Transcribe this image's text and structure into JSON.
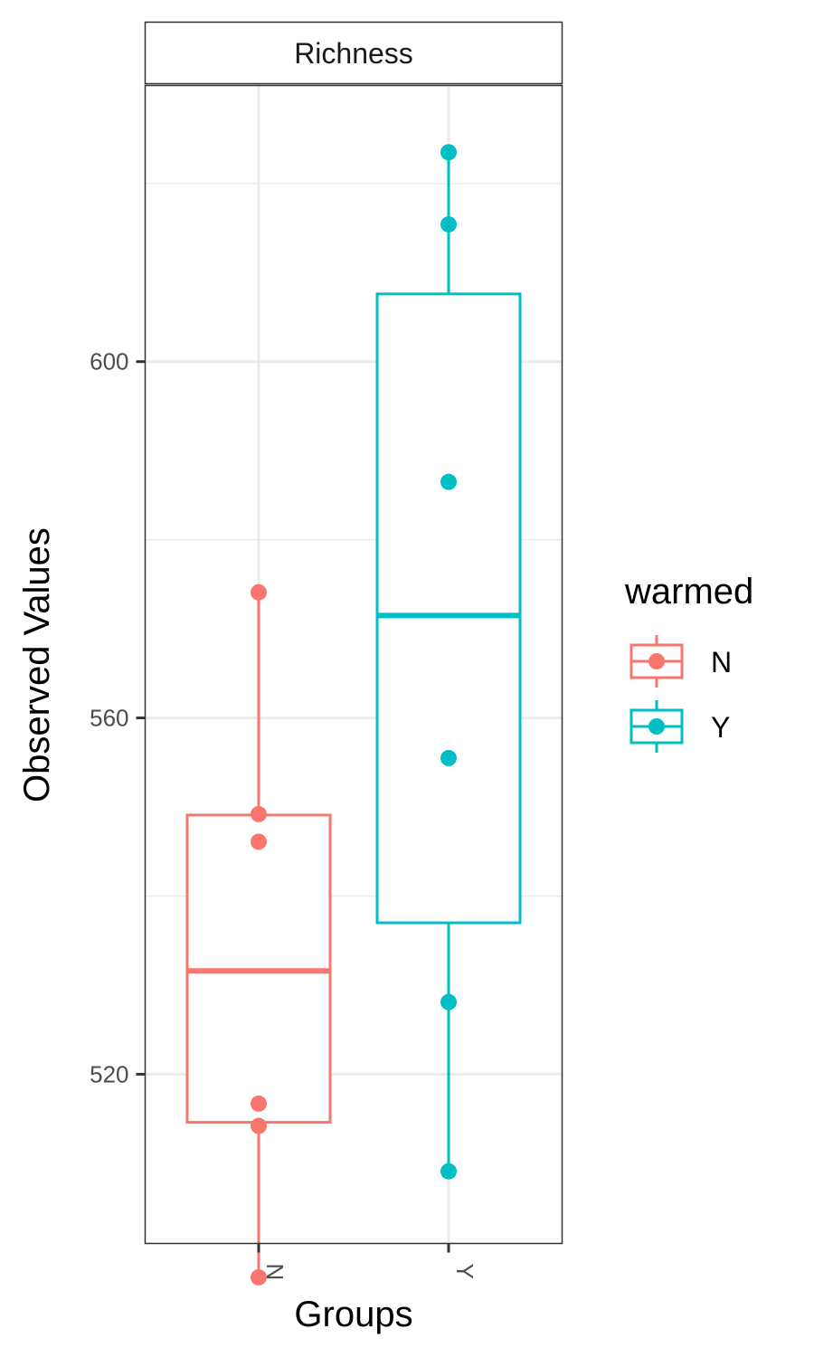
{
  "chart_data": {
    "type": "box",
    "facet_title": "Richness",
    "xlabel": "Groups",
    "ylabel": "Observed Values",
    "categories": [
      "N",
      "Y"
    ],
    "ylim": [
      501,
      631
    ],
    "yticks": [
      520,
      560,
      600
    ],
    "ytick_labels": [
      "520",
      "560",
      "600"
    ],
    "grid": true,
    "legend": {
      "title": "warmed",
      "position": "right",
      "entries": [
        {
          "label": "N",
          "color": "#F8766D"
        },
        {
          "label": "Y",
          "color": "#00BFC4"
        }
      ]
    },
    "series": [
      {
        "group": "N",
        "color": "#F8766D",
        "box": {
          "lower_whisker": 497.2,
          "q1": 514.6,
          "median": 531.6,
          "q3": 549.1,
          "upper_whisker": 574.1
        },
        "points": [
          574.1,
          549.2,
          546.1,
          516.7,
          514.2,
          497.2
        ]
      },
      {
        "group": "Y",
        "color": "#00BFC4",
        "box": {
          "lower_whisker": 509.1,
          "q1": 537.0,
          "median": 571.5,
          "q3": 607.6,
          "upper_whisker": 623.5
        },
        "points": [
          623.5,
          615.4,
          586.5,
          555.5,
          528.1,
          509.1
        ]
      }
    ]
  }
}
